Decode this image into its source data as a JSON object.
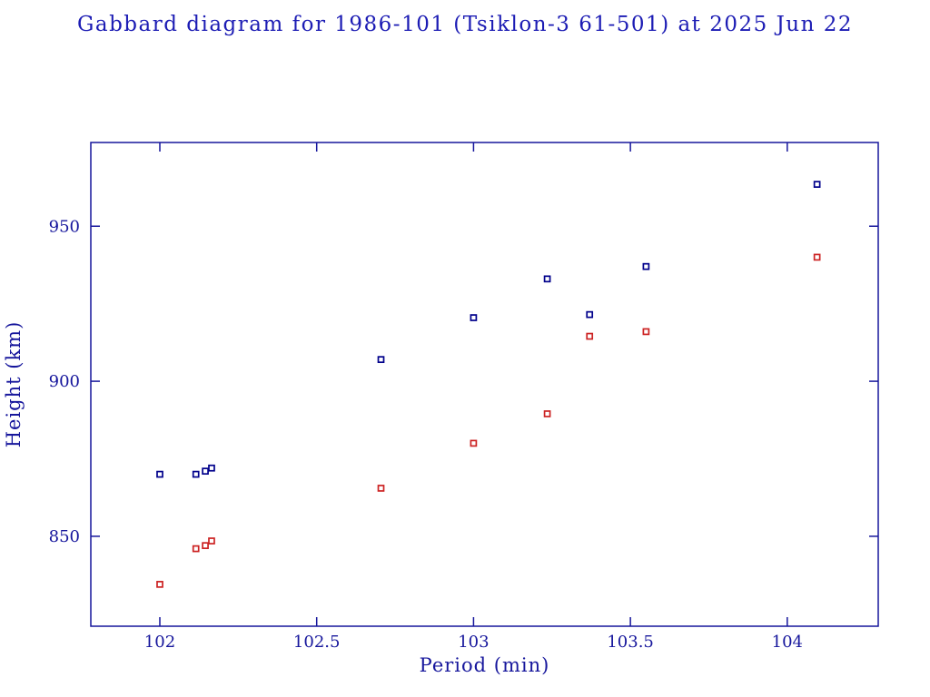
{
  "title": "Gabbard diagram for 1986-101 (Tsiklon-3 61-501) at 2025 Jun 22",
  "colors": {
    "axis": "#16169c",
    "title_text": "#1c1cb4",
    "apogee_marker": "#00008b",
    "perigee_marker": "#cc2222",
    "background": "#ffffff"
  },
  "chart_data": {
    "type": "scatter",
    "title": "Gabbard diagram for 1986-101 (Tsiklon-3 61-501) at 2025 Jun 22",
    "xlabel": "Period (min)",
    "ylabel": "Height (km)",
    "xlim": [
      101.78,
      104.29
    ],
    "ylim": [
      821,
      977
    ],
    "xticks": [
      102,
      102.5,
      103,
      103.5,
      104
    ],
    "xtick_labels": [
      "102",
      "102.5",
      "103",
      "103.5",
      "104"
    ],
    "yticks": [
      850,
      900,
      950
    ],
    "ytick_labels": [
      "850",
      "900",
      "950"
    ],
    "grid": false,
    "legend": "none",
    "marker": "open-square",
    "series": [
      {
        "name": "apogee",
        "color": "#00008b",
        "points": [
          [
            102.0,
            870
          ],
          [
            102.115,
            870
          ],
          [
            102.145,
            871
          ],
          [
            102.165,
            872
          ],
          [
            102.705,
            907
          ],
          [
            103.0,
            920.5
          ],
          [
            103.235,
            933
          ],
          [
            103.37,
            921.5
          ],
          [
            103.55,
            937
          ],
          [
            104.095,
            963.5
          ]
        ]
      },
      {
        "name": "perigee",
        "color": "#cc2222",
        "points": [
          [
            102.0,
            834.5
          ],
          [
            102.115,
            846
          ],
          [
            102.145,
            847
          ],
          [
            102.165,
            848.5
          ],
          [
            102.705,
            865.5
          ],
          [
            103.0,
            880
          ],
          [
            103.235,
            889.5
          ],
          [
            103.37,
            914.5
          ],
          [
            103.55,
            916
          ],
          [
            104.095,
            940
          ]
        ]
      }
    ]
  }
}
